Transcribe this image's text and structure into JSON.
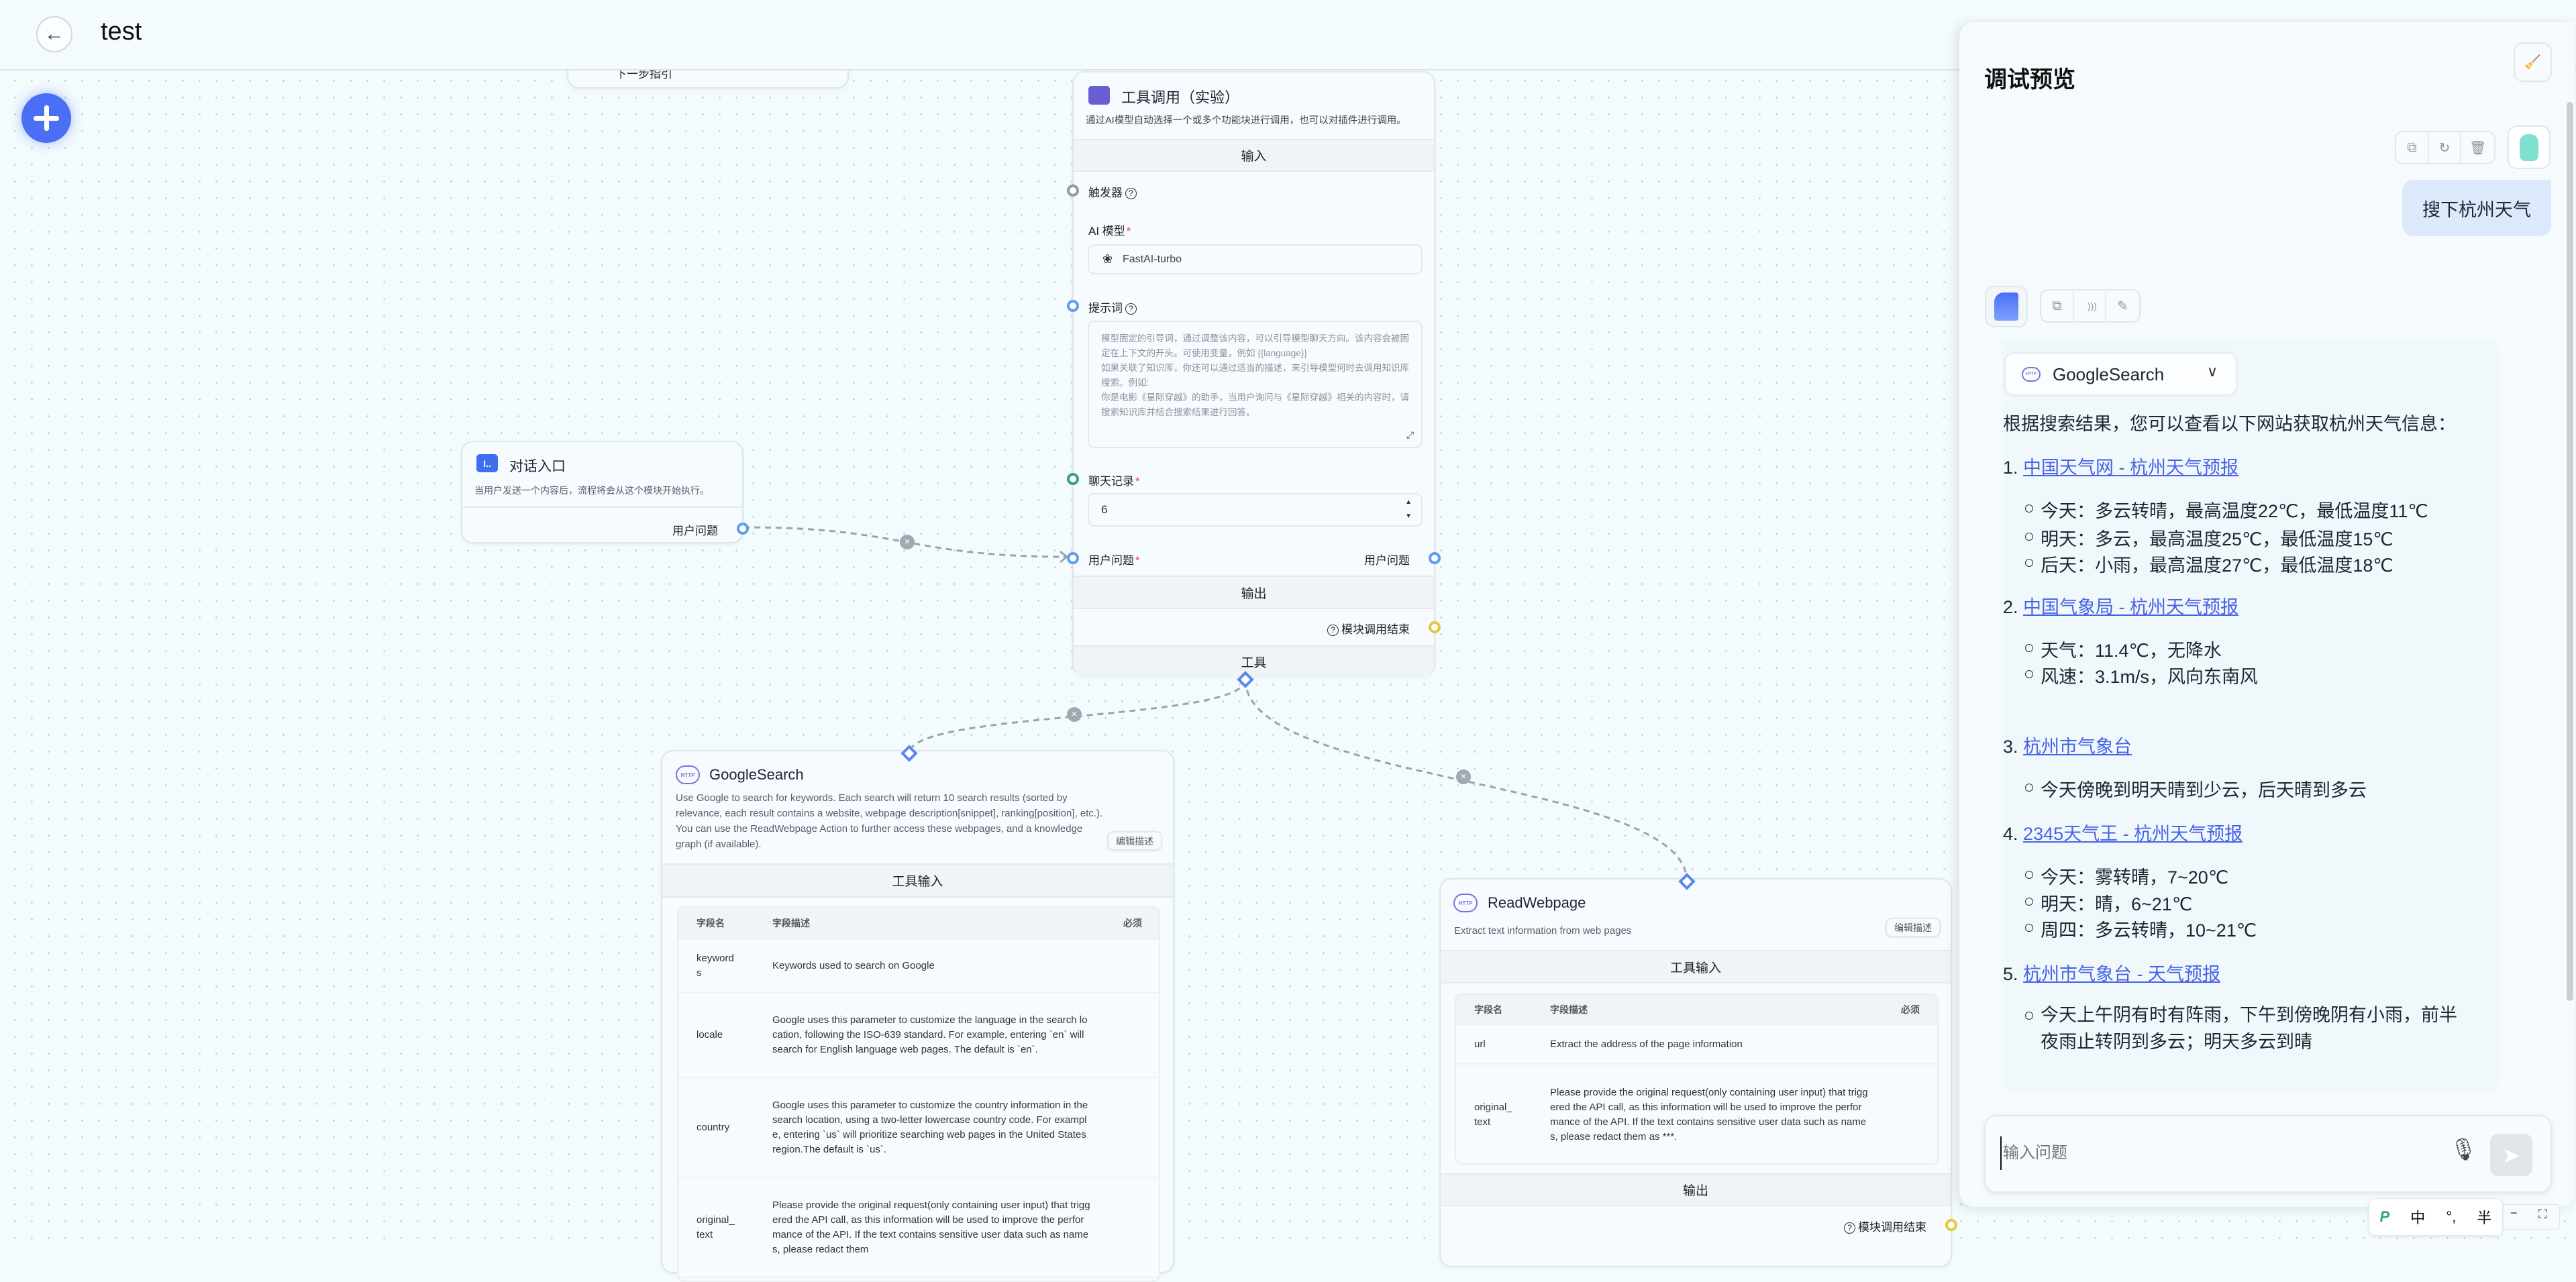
{
  "header": {
    "title": "test",
    "back_icon": "arrow-left-icon"
  },
  "canvas": {
    "add_icon": "plus-icon",
    "partial_node": {
      "title": "下一步指引"
    },
    "entry_node": {
      "title": "对话入口",
      "description": "当用户发送一个内容后，流程将会从这个模块开始执行。",
      "output_label": "用户问题",
      "icon_text": "I.."
    },
    "tool_node": {
      "title": "工具调用（实验）",
      "description": "通过AI模型自动选择一个或多个功能块进行调用，也可以对插件进行调用。",
      "input_section": "输入",
      "trigger_label": "触发器",
      "model_label": "AI 模型",
      "model_value": "FastAI-turbo",
      "prompt_label": "提示词",
      "prompt_placeholder": "模型固定的引导词，通过调整该内容，可以引导模型聊天方向。该内容会被固定在上下文的开头。可使用变量，例如 {{language}}\n如果关联了知识库，你还可以通过适当的描述，来引导模型何时去调用知识库搜索。例如:\n你是电影《星际穿越》的助手，当用户询问与《星际穿越》相关的内容时，请搜索知识库并结合搜索结果进行回答。",
      "history_label": "聊天记录",
      "history_value": "6",
      "question_label": "用户问题",
      "question_output": "用户问题",
      "output_section": "输出",
      "finish_label": "模块调用结束",
      "tools_section": "工具"
    },
    "google_node": {
      "title": "GoogleSearch",
      "description": "Use Google to search for keywords. Each search will return 10 search results (sorted by relevance, each result contains a website, webpage description[snippet], ranking[position], etc.). You can use the ReadWebpage Action to further access these webpages, and a knowledge graph (if available).",
      "edit_label": "编辑描述",
      "input_section": "工具输入",
      "columns": [
        "字段名",
        "字段描述",
        "必须"
      ],
      "fields": [
        {
          "name": "keywords",
          "description": "Keywords used to search on Google"
        },
        {
          "name": "locale",
          "description": "Google uses this parameter to customize the language in the search location, following the ISO-639 standard. For example, entering `en` will search for English language web pages. The default is `en`."
        },
        {
          "name": "country",
          "description": "Google uses this parameter to customize the country information in the search location, using a two-letter lowercase country code. For example, entering `us` will prioritize searching web pages in the United States region.The default is `us`."
        },
        {
          "name": "original_text",
          "description": "Please provide the original request(only containing user input) that triggered the API call, as this information will be used to improve the performance of the API. If the text contains sensitive user data such as names, please redact them"
        }
      ]
    },
    "read_node": {
      "title": "ReadWebpage",
      "description": "Extract text information from web pages",
      "edit_label": "编辑描述",
      "input_section": "工具输入",
      "columns": [
        "字段名",
        "字段描述",
        "必须"
      ],
      "fields": [
        {
          "name": "url",
          "description": "Extract the address of the page information"
        },
        {
          "name": "original_text",
          "description": "Please provide the original request(only containing user input) that triggered the API call, as this information will be used to improve the performance of the API. If the text contains sensitive user data such as names, please redact them as ***."
        }
      ],
      "output_section": "输出",
      "finish_label": "模块调用结束"
    }
  },
  "chat": {
    "title": "调试预览",
    "user_message": "搜下杭州天气",
    "tool_chip": "GoogleSearch",
    "intro": "根据搜索结果，您可以查看以下网站获取杭州天气信息：",
    "items": [
      {
        "num": "1.",
        "link": "中国天气网 - 杭州天气预报",
        "bullets": [
          "今天：多云转晴，最高温度22℃，最低温度11℃",
          "明天：多云，最高温度25℃，最低温度15℃",
          "后天：小雨，最高温度27℃，最低温度18℃"
        ]
      },
      {
        "num": "2.",
        "link": "中国气象局 - 杭州天气预报",
        "bullets": [
          "天气：11.4℃，无降水",
          "风速：3.1m/s，风向东南风"
        ]
      },
      {
        "num": "3.",
        "link": "杭州市气象台",
        "bullets": [
          "今天傍晚到明天晴到少云，后天晴到多云"
        ]
      },
      {
        "num": "4.",
        "link": "2345天气王 - 杭州天气预报",
        "bullets": [
          "今天：雾转晴，7~20℃",
          "明天：晴，6~21℃",
          "周四：多云转晴，10~21℃"
        ]
      },
      {
        "num": "5.",
        "link": "杭州市气象台 - 天气预报",
        "bullets": [
          "今天上午阴有时有阵雨，下午到傍晚阴有小雨，前半夜雨止转阴到多云；明天多云到晴"
        ]
      }
    ],
    "input_placeholder": "输入问题",
    "link_color": "#4763e6"
  },
  "ime": {
    "mode": "中",
    "punct": "°,",
    "width": "半"
  }
}
